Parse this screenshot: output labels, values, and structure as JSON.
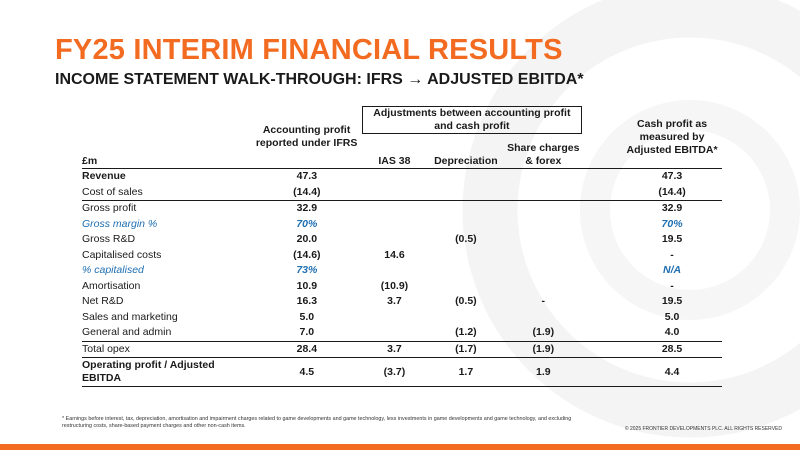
{
  "title": "FY25 INTERIM FINANCIAL RESULTS",
  "subtitle": "INCOME STATEMENT WALK-THROUGH: IFRS → ADJUSTED EBITDA*",
  "colors": {
    "accent": "#f26b21",
    "italic_blue": "#1f6fb2",
    "text": "#1a1a1a"
  },
  "table": {
    "headers": {
      "label": "£m",
      "ifrs": "Accounting profit reported under IFRS",
      "adjustments_group": "Adjustments between accounting profit and cash profit",
      "ias38": "IAS 38",
      "depreciation": "Depreciation",
      "share": "Share charges & forex",
      "cash": "Cash profit as measured by Adjusted EBITDA*"
    },
    "rows": [
      {
        "label": "Revenue",
        "ifrs": "47.3",
        "ias38": "",
        "depreciation": "",
        "share": "",
        "cash": "47.3"
      },
      {
        "label": "Cost of sales",
        "ifrs": "(14.4)",
        "ias38": "",
        "depreciation": "",
        "share": "",
        "cash": "(14.4)"
      },
      {
        "label": "Gross profit",
        "ifrs": "32.9",
        "ias38": "",
        "depreciation": "",
        "share": "",
        "cash": "32.9"
      },
      {
        "label": "Gross margin %",
        "ifrs": "70%",
        "ias38": "",
        "depreciation": "",
        "share": "",
        "cash": "70%"
      },
      {
        "label": "Gross R&D",
        "ifrs": "20.0",
        "ias38": "",
        "depreciation": "(0.5)",
        "share": "",
        "cash": "19.5"
      },
      {
        "label": "Capitalised costs",
        "ifrs": "(14.6)",
        "ias38": "14.6",
        "depreciation": "",
        "share": "",
        "cash": "-"
      },
      {
        "label": "% capitalised",
        "ifrs": "73%",
        "ias38": "",
        "depreciation": "",
        "share": "",
        "cash": "N/A"
      },
      {
        "label": "Amortisation",
        "ifrs": "10.9",
        "ias38": "(10.9)",
        "depreciation": "",
        "share": "",
        "cash": "-"
      },
      {
        "label": "Net R&D",
        "ifrs": "16.3",
        "ias38": "3.7",
        "depreciation": "(0.5)",
        "share": "-",
        "cash": "19.5"
      },
      {
        "label": "Sales and marketing",
        "ifrs": "5.0",
        "ias38": "",
        "depreciation": "",
        "share": "",
        "cash": "5.0"
      },
      {
        "label": "General and admin",
        "ifrs": "7.0",
        "ias38": "",
        "depreciation": "(1.2)",
        "share": "(1.9)",
        "cash": "4.0"
      },
      {
        "label": "Total opex",
        "ifrs": "28.4",
        "ias38": "3.7",
        "depreciation": "(1.7)",
        "share": "(1.9)",
        "cash": "28.5"
      },
      {
        "label": "Operating profit / Adjusted EBITDA",
        "ifrs": "4.5",
        "ias38": "(3.7)",
        "depreciation": "1.7",
        "share": "1.9",
        "cash": "4.4"
      }
    ]
  },
  "footnote": "* Earnings before interest, tax, depreciation, amortisation and impairment charges related to game developments and game technology, less investments in game developments and game technology, and excluding restructuring costs, share-based payment charges and other non-cash items.",
  "copyright": "© 2025 FRONTIER DEVELOPMENTS PLC. ALL RIGHTS RESERVED"
}
